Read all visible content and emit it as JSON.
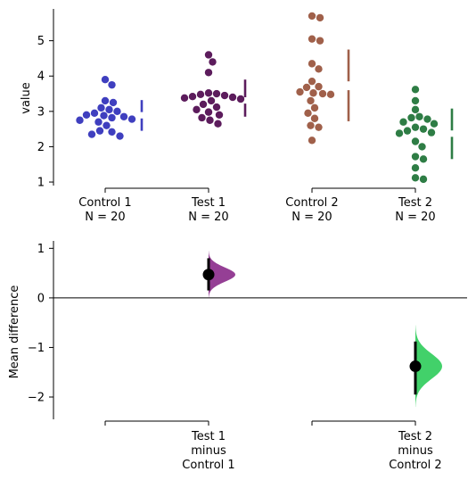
{
  "chart_data": [
    {
      "type": "scatter",
      "subtype": "swarm",
      "title": "",
      "xlabel": "",
      "ylabel": "value",
      "ylim": [
        0.9,
        5.9
      ],
      "yticks": [
        1,
        2,
        3,
        4,
        5
      ],
      "grid": false,
      "legend": "none",
      "categories": [
        "Control 1\nN = 20",
        "Test 1\nN = 20",
        "Control 2\nN = 20",
        "Test 2\nN = 20"
      ],
      "category_pairs": [
        {
          "left": "Control 1\nN = 20",
          "right": "Test 1\nN = 20"
        },
        {
          "left": "Control 2\nN = 20",
          "right": "Test 2\nN = 20"
        }
      ],
      "series": [
        {
          "color": "#3f3fbf",
          "values": [
            3.9,
            3.75,
            3.3,
            3.25,
            3.1,
            3.05,
            3.0,
            2.95,
            2.9,
            2.88,
            2.85,
            2.82,
            2.78,
            2.75,
            2.7,
            2.6,
            2.45,
            2.42,
            2.35,
            2.3
          ],
          "mean_sd_gap": {
            "low": 2.45,
            "gap_low": 2.8,
            "gap_high": 2.98,
            "high": 3.32
          }
        },
        {
          "color": "#5c1c5c",
          "values": [
            4.6,
            4.4,
            4.1,
            3.52,
            3.5,
            3.48,
            3.45,
            3.42,
            3.4,
            3.38,
            3.35,
            3.3,
            3.2,
            3.12,
            3.05,
            2.98,
            2.9,
            2.82,
            2.75,
            2.65
          ],
          "mean_sd_gap": {
            "low": 2.85,
            "gap_low": 3.22,
            "gap_high": 3.4,
            "high": 3.9
          }
        },
        {
          "color": "#a0604a",
          "values": [
            5.7,
            5.65,
            5.05,
            5.0,
            4.35,
            4.2,
            3.85,
            3.7,
            3.68,
            3.55,
            3.52,
            3.5,
            3.48,
            3.3,
            3.1,
            2.95,
            2.8,
            2.6,
            2.55,
            2.18
          ],
          "mean_sd_gap": {
            "low": 2.72,
            "gap_low": 3.6,
            "gap_high": 3.85,
            "high": 4.75
          }
        },
        {
          "color": "#2e7d45",
          "values": [
            3.62,
            3.3,
            3.05,
            2.85,
            2.82,
            2.78,
            2.7,
            2.65,
            2.55,
            2.5,
            2.45,
            2.4,
            2.38,
            2.15,
            2.0,
            1.72,
            1.65,
            1.4,
            1.12,
            1.08
          ],
          "mean_sd_gap": {
            "low": 1.65,
            "gap_low": 2.28,
            "gap_high": 2.46,
            "high": 3.08
          }
        }
      ]
    },
    {
      "type": "scatter",
      "subtype": "estimation",
      "title": "",
      "xlabel": "",
      "ylabel": "Mean difference",
      "ylim": [
        -2.45,
        1.15
      ],
      "yticks": [
        -2,
        -1,
        0,
        1
      ],
      "zero_line": true,
      "grid": false,
      "legend": "none",
      "categories": [
        "",
        "Test 1\nminus\nControl 1",
        "",
        "Test 2\nminus\nControl 2"
      ],
      "category_pairs": [
        {
          "left": "",
          "right": "Test 1\nminus\nControl 1"
        },
        {
          "left": "",
          "right": "Test 2\nminus\nControl 2"
        }
      ],
      "effects": [
        {
          "position": 1,
          "mean_difference": 0.47,
          "ci": [
            0.15,
            0.8
          ],
          "color": "#8a2a8a",
          "distribution_range": [
            0.0,
            0.95
          ],
          "distribution_peak": 0.47
        },
        {
          "position": 3,
          "mean_difference": -1.38,
          "ci": [
            -1.95,
            -0.88
          ],
          "color": "#2ecc5a",
          "distribution_range": [
            -2.2,
            -0.55
          ],
          "distribution_peak": -1.38
        }
      ]
    }
  ]
}
